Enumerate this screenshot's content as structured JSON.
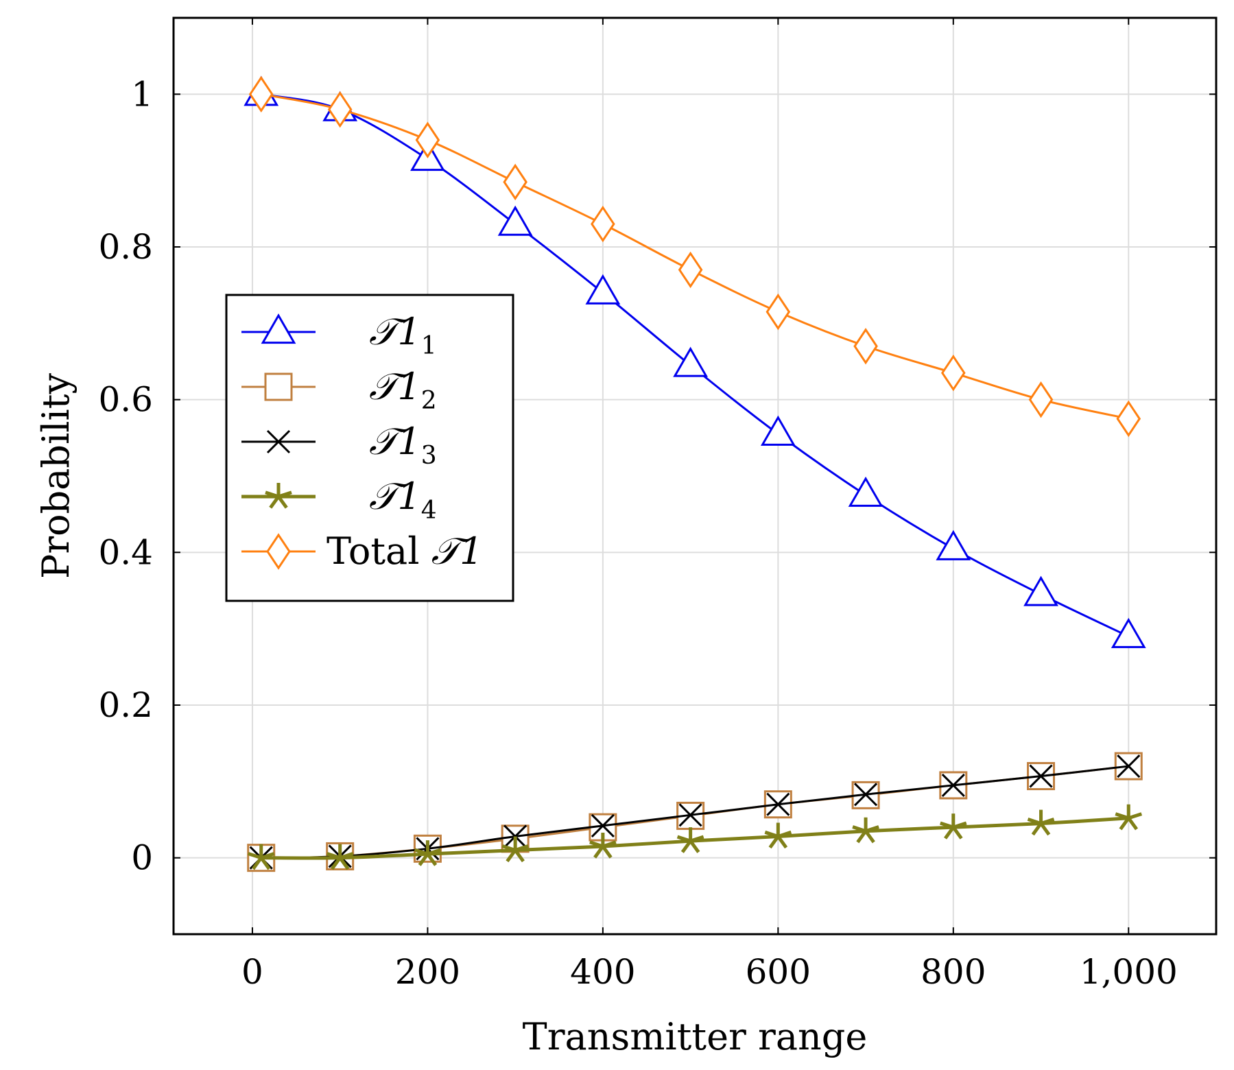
{
  "chart_data": {
    "type": "line",
    "title": "",
    "xlabel": "Transmitter range",
    "ylabel": "Probability",
    "xlim": [
      -90,
      1100
    ],
    "ylim": [
      -0.1,
      1.1
    ],
    "grid": true,
    "xticks": [
      0,
      200,
      400,
      600,
      800,
      1000
    ],
    "xtick_labels": [
      "0",
      "200",
      "400",
      "600",
      "800",
      "1,000"
    ],
    "yticks": [
      0,
      0.2,
      0.4,
      0.6,
      0.8,
      1
    ],
    "ytick_labels": [
      "0",
      "0.2",
      "0.4",
      "0.6",
      "0.8",
      "1"
    ],
    "legend_position": "center-left",
    "x": [
      10,
      100,
      200,
      300,
      400,
      500,
      600,
      700,
      800,
      900,
      1000
    ],
    "series": [
      {
        "name": "T1",
        "sub": "1",
        "color": "#0000ee",
        "marker": "triangle",
        "values": [
          1.0,
          0.98,
          0.915,
          0.83,
          0.74,
          0.645,
          0.555,
          0.475,
          0.405,
          0.345,
          0.29
        ]
      },
      {
        "name": "T1",
        "sub": "2",
        "color": "#c08040",
        "marker": "square",
        "values": [
          0.0,
          0.002,
          0.012,
          0.025,
          0.04,
          0.055,
          0.07,
          0.082,
          0.095,
          0.107,
          0.12
        ]
      },
      {
        "name": "T1",
        "sub": "3",
        "color": "#000000",
        "marker": "cross",
        "values": [
          0.0,
          0.002,
          0.012,
          0.028,
          0.042,
          0.056,
          0.07,
          0.083,
          0.095,
          0.107,
          0.12
        ]
      },
      {
        "name": "T1",
        "sub": "4",
        "color": "#808018",
        "marker": "star",
        "values": [
          0.0,
          0.0,
          0.005,
          0.01,
          0.015,
          0.022,
          0.028,
          0.035,
          0.04,
          0.045,
          0.052
        ]
      },
      {
        "name": "Total T1",
        "sub": "",
        "color": "#ff8010",
        "marker": "diamond",
        "values": [
          1.0,
          0.98,
          0.94,
          0.885,
          0.83,
          0.77,
          0.715,
          0.67,
          0.635,
          0.6,
          0.575
        ]
      }
    ],
    "legend": [
      {
        "prefix": "",
        "symbol": "𝒯1",
        "sub": "1"
      },
      {
        "prefix": "",
        "symbol": "𝒯1",
        "sub": "2"
      },
      {
        "prefix": "",
        "symbol": "𝒯1",
        "sub": "3"
      },
      {
        "prefix": "",
        "symbol": "𝒯1",
        "sub": "4"
      },
      {
        "prefix": "Total ",
        "symbol": "𝒯1",
        "sub": ""
      }
    ]
  }
}
